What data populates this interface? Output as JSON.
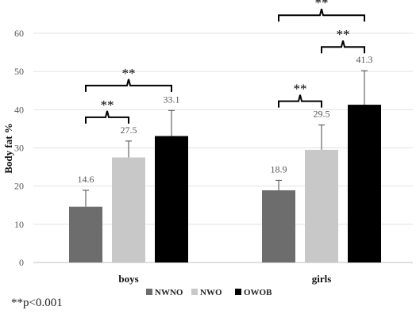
{
  "chart_data": {
    "type": "bar",
    "categories": [
      "boys",
      "girls"
    ],
    "series": [
      {
        "name": "NWNO",
        "color": "#6d6d6d",
        "values": [
          14.6,
          18.9
        ],
        "errors": [
          4.3,
          2.6
        ],
        "labels": [
          "14.6",
          "18.9"
        ]
      },
      {
        "name": "NWO",
        "color": "#c8c8c8",
        "values": [
          27.5,
          29.5
        ],
        "errors": [
          4.3,
          6.5
        ],
        "labels": [
          "27.5",
          "29.5"
        ]
      },
      {
        "name": "OWOB",
        "color": "#000000",
        "values": [
          33.1,
          41.3
        ],
        "errors": [
          6.7,
          8.9
        ],
        "labels": [
          "33.1",
          "41.3"
        ]
      }
    ],
    "ylabel": "Body fat %",
    "xlabel": "",
    "ylim": [
      0,
      60
    ],
    "yticks": [
      "0",
      "10",
      "20",
      "30",
      "40",
      "50",
      "60"
    ],
    "grid": true,
    "legend_position": "bottom",
    "significance": [
      {
        "category": 0,
        "from_series": 0,
        "to_series": 1,
        "label": "**"
      },
      {
        "category": 0,
        "from_series": 0,
        "to_series": 2,
        "label": "**"
      },
      {
        "category": 1,
        "from_series": 0,
        "to_series": 1,
        "label": "**"
      },
      {
        "category": 1,
        "from_series": 1,
        "to_series": 2,
        "label": "**"
      },
      {
        "category": 1,
        "from_series": 0,
        "to_series": 2,
        "label": "**"
      }
    ]
  },
  "footnote": "**p<0.001"
}
